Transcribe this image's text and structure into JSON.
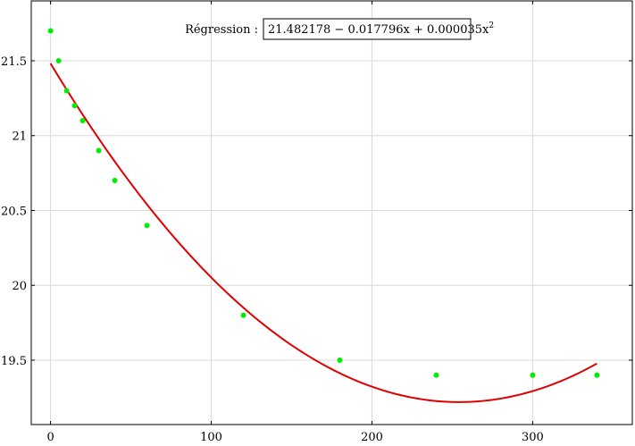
{
  "chart_data": {
    "type": "scatter",
    "title": "",
    "xlabel": "",
    "ylabel": "",
    "xlim": [
      -12,
      362
    ],
    "ylim": [
      19.07,
      21.9
    ],
    "grid": true,
    "x_ticks": [
      0,
      100,
      200,
      300
    ],
    "x_tick_labels": [
      "0",
      "100",
      "200",
      "300"
    ],
    "y_ticks": [
      19.5,
      20,
      20.5,
      21,
      21.5
    ],
    "y_tick_labels": [
      "19.5",
      "20",
      "20.5",
      "21",
      "21.5"
    ],
    "points_color": "#00ee00",
    "curve_color": "#e00000",
    "series": [
      {
        "name": "",
        "x": [
          0,
          5,
          10,
          15,
          20,
          30,
          40,
          60,
          120,
          180,
          240,
          300,
          340
        ],
        "y": [
          21.7,
          21.5,
          21.3,
          21.2,
          21.1,
          20.9,
          20.7,
          20.4,
          19.8,
          19.5,
          19.4,
          19.4,
          19.4
        ]
      }
    ],
    "regression": {
      "label": "Régression :",
      "equation": "21.482178 − 0.017796x + 0.000035x",
      "exponent": "2",
      "coefficients": [
        21.482178,
        -0.017796,
        3.5e-05
      ],
      "x_range": [
        0,
        340
      ]
    }
  }
}
